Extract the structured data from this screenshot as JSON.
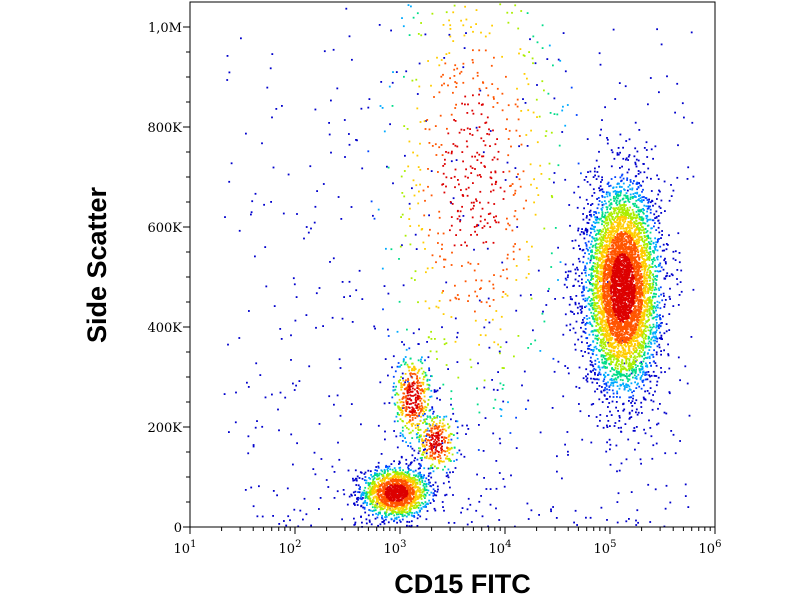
{
  "chart_data": {
    "type": "scatter",
    "subtype": "flow-cytometry-density-dot-plot",
    "title": "",
    "xlabel": "CD15 FITC",
    "ylabel": "Side Scatter",
    "x_scale": "log",
    "xlim": [
      10,
      1000000
    ],
    "ylim": [
      0,
      1050000
    ],
    "x_ticks": [
      {
        "value": 10,
        "base": "10",
        "exp": "1"
      },
      {
        "value": 100,
        "base": "10",
        "exp": "2"
      },
      {
        "value": 1000,
        "base": "10",
        "exp": "3"
      },
      {
        "value": 10000,
        "base": "10",
        "exp": "4"
      },
      {
        "value": 100000,
        "base": "10",
        "exp": "5"
      },
      {
        "value": 1000000,
        "base": "10",
        "exp": "6"
      }
    ],
    "y_ticks": [
      {
        "value": 0,
        "label": "0"
      },
      {
        "value": 200000,
        "label": "200K"
      },
      {
        "value": 400000,
        "label": "400K"
      },
      {
        "value": 600000,
        "label": "600K"
      },
      {
        "value": 800000,
        "label": "800K"
      },
      {
        "value": 1000000,
        "label": "1,0M"
      }
    ],
    "grid": false,
    "color_scale": [
      "#0000cc",
      "#0044ff",
      "#00aaff",
      "#00dd88",
      "#aaee00",
      "#ffcc00",
      "#ff5500",
      "#dd0000"
    ],
    "populations": [
      {
        "center_x": 900,
        "center_y": 70000,
        "spread_log_x": 0.16,
        "spread_y": 25000,
        "count": 1500
      },
      {
        "center_x": 1300,
        "center_y": 260000,
        "spread_log_x": 0.09,
        "spread_y": 45000,
        "count": 420
      },
      {
        "center_x": 2200,
        "center_y": 170000,
        "spread_log_x": 0.1,
        "spread_y": 30000,
        "count": 300
      },
      {
        "center_x": 130000,
        "center_y": 480000,
        "spread_log_x": 0.17,
        "spread_y": 100000,
        "count": 5500
      },
      {
        "center_x": 5000,
        "center_y": 700000,
        "spread_log_x": 0.45,
        "spread_y": 250000,
        "count": 700
      }
    ]
  }
}
